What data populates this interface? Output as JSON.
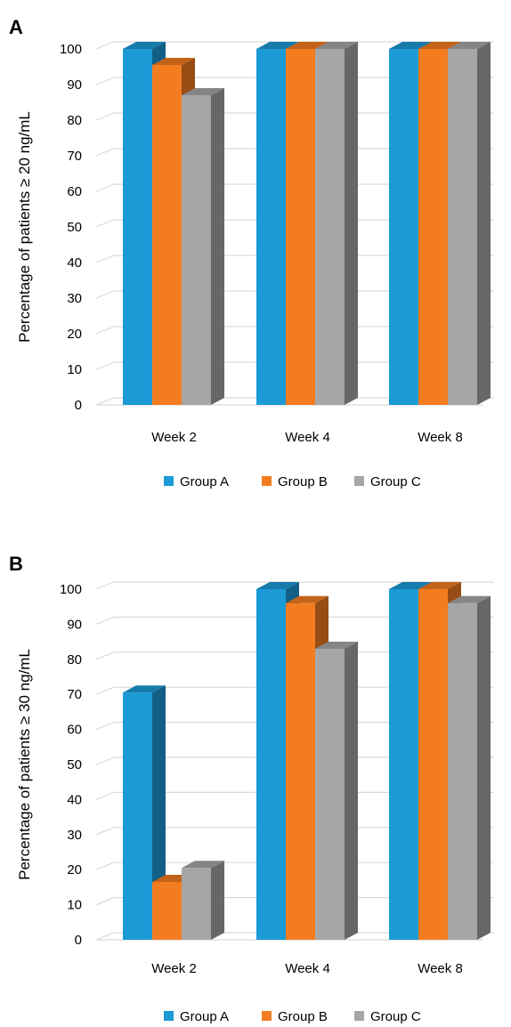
{
  "chart_data": [
    {
      "type": "bar",
      "panel_label": "A",
      "categories": [
        "Week 2",
        "Week 4",
        "Week 8"
      ],
      "series": [
        {
          "name": "Group A",
          "color": "#1B9AD6",
          "values": [
            100,
            100,
            100
          ]
        },
        {
          "name": "Group B",
          "color": "#F47C20",
          "values": [
            95.5,
            100,
            100
          ]
        },
        {
          "name": "Group C",
          "color": "#A6A6A6",
          "values": [
            87,
            100,
            100
          ]
        }
      ],
      "ylabel": "Percentage of patients ≥ 20 ng/mL",
      "xlabel": "",
      "ylim": [
        0,
        100
      ],
      "yticks": [
        0,
        10,
        20,
        30,
        40,
        50,
        60,
        70,
        80,
        90,
        100
      ],
      "grid": true,
      "legend": "bottom",
      "style": "3d-column"
    },
    {
      "type": "bar",
      "panel_label": "B",
      "categories": [
        "Week 2",
        "Week 4",
        "Week 8"
      ],
      "series": [
        {
          "name": "Group A",
          "color": "#1B9AD6",
          "values": [
            70.5,
            100,
            100
          ]
        },
        {
          "name": "Group B",
          "color": "#F47C20",
          "values": [
            16.5,
            96,
            100
          ]
        },
        {
          "name": "Group C",
          "color": "#A6A6A6",
          "values": [
            20.5,
            83,
            96
          ]
        }
      ],
      "ylabel": "Percentage of patients ≥ 30 ng/mL",
      "xlabel": "",
      "ylim": [
        0,
        100
      ],
      "yticks": [
        0,
        10,
        20,
        30,
        40,
        50,
        60,
        70,
        80,
        90,
        100
      ],
      "grid": true,
      "legend": "bottom",
      "style": "3d-column"
    }
  ]
}
